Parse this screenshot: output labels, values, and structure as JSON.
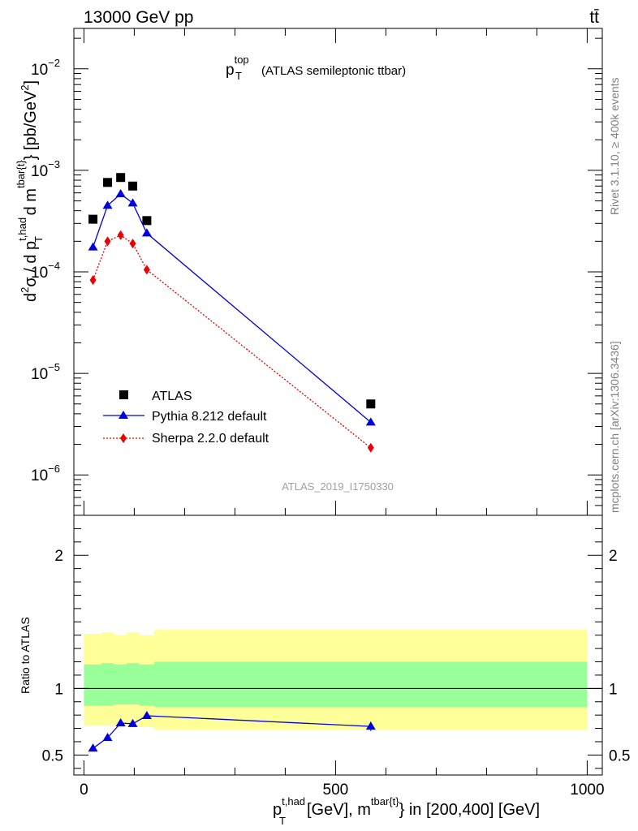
{
  "header": {
    "energy_label": "13000 GeV pp",
    "process_label": "tt̄"
  },
  "side_labels": {
    "rivet": "Rivet 3.1.10, ≥ 400k events",
    "mcplots": "mcplots.cern.ch [arXiv:1306.3436]"
  },
  "chart_data": {
    "type": "scatter",
    "analysis_id": "ATLAS_2019_I1750330",
    "title": {
      "symbol": "p",
      "sub": "T",
      "sup": "top",
      "rest": "(ATLAS semileptonic ttbar)"
    },
    "x": [
      18,
      47,
      73,
      97,
      125,
      570
    ],
    "xlim": [
      -20,
      1030
    ],
    "xticks": [
      0,
      500,
      1000
    ],
    "xlabel": {
      "p": "p",
      "p_sub": "T",
      "p_sup": "t,had",
      "mid": "[GeV], m",
      "m_sup": "tbar{t}",
      "tail": "} in [200,400] [GeV]"
    },
    "main": {
      "yscale": "log",
      "ylim": [
        4e-07,
        0.025
      ],
      "yticks": [
        {
          "v": 1e-06,
          "base": "10",
          "exp": "−6"
        },
        {
          "v": 1e-05,
          "base": "10",
          "exp": "−5"
        },
        {
          "v": 0.0001,
          "base": "10",
          "exp": "−4"
        },
        {
          "v": 0.001,
          "base": "10",
          "exp": "−3"
        },
        {
          "v": 0.01,
          "base": "10",
          "exp": "−2"
        }
      ],
      "ylabel": "d²σ / d p_T^{t,had} d m^{tbar{t}} [pb/GeV²]",
      "ylabel_parts": {
        "d": "d",
        "two": "2",
        "sigma": "σ / d p",
        "p_sub": "T",
        "p_sup": "t,had",
        "dm": " d m",
        "m_sup": "tbar{t}",
        "unit": "} [pb/GeV",
        "unit_sup": "2",
        "close": "]"
      },
      "series": [
        {
          "name": "ATLAS",
          "color": "#000000",
          "marker": "square",
          "line": "none",
          "values": [
            0.00033,
            0.00076,
            0.00085,
            0.0007,
            0.00032,
            5e-06
          ]
        },
        {
          "name": "Pythia 8.212 default",
          "color": "#0000dd",
          "marker": "triangle",
          "line": "solid",
          "values": [
            0.000175,
            0.00045,
            0.000585,
            0.000475,
            0.00024,
            3.3e-06
          ]
        },
        {
          "name": "Sherpa 2.2.0 default",
          "color": "#ee0000",
          "marker": "diamond",
          "line": "dotted",
          "values": [
            8.3e-05,
            0.0002,
            0.00023,
            0.00019,
            0.000105,
            1.85e-06
          ]
        }
      ],
      "legend": "left-middle"
    },
    "ratio": {
      "ylabel": "Ratio to ATLAS",
      "ylim": [
        0.35,
        2.3
      ],
      "yticks": [
        {
          "v": 0.5,
          "label": "0.5"
        },
        {
          "v": 1,
          "label": "1"
        },
        {
          "v": 2,
          "label": "2"
        }
      ],
      "band_x_edges": [
        0,
        35,
        60,
        85,
        110,
        140,
        1000
      ],
      "band_inner_lo": [
        0.87,
        0.87,
        0.88,
        0.88,
        0.87,
        0.86
      ],
      "band_inner_hi": [
        1.18,
        1.19,
        1.18,
        1.19,
        1.18,
        1.2
      ],
      "band_outer_lo": [
        0.72,
        0.72,
        0.71,
        0.71,
        0.71,
        0.69
      ],
      "band_outer_hi": [
        1.41,
        1.42,
        1.4,
        1.42,
        1.4,
        1.44
      ],
      "inner_color": "#99ff99",
      "outer_color": "#ffff99",
      "pythia_ratio": [
        0.55,
        0.63,
        0.74,
        0.735,
        0.795,
        0.715
      ],
      "pythia_ratio_err": [
        0.015,
        0.015,
        0.01,
        0.01,
        0.015,
        0.035
      ]
    }
  }
}
